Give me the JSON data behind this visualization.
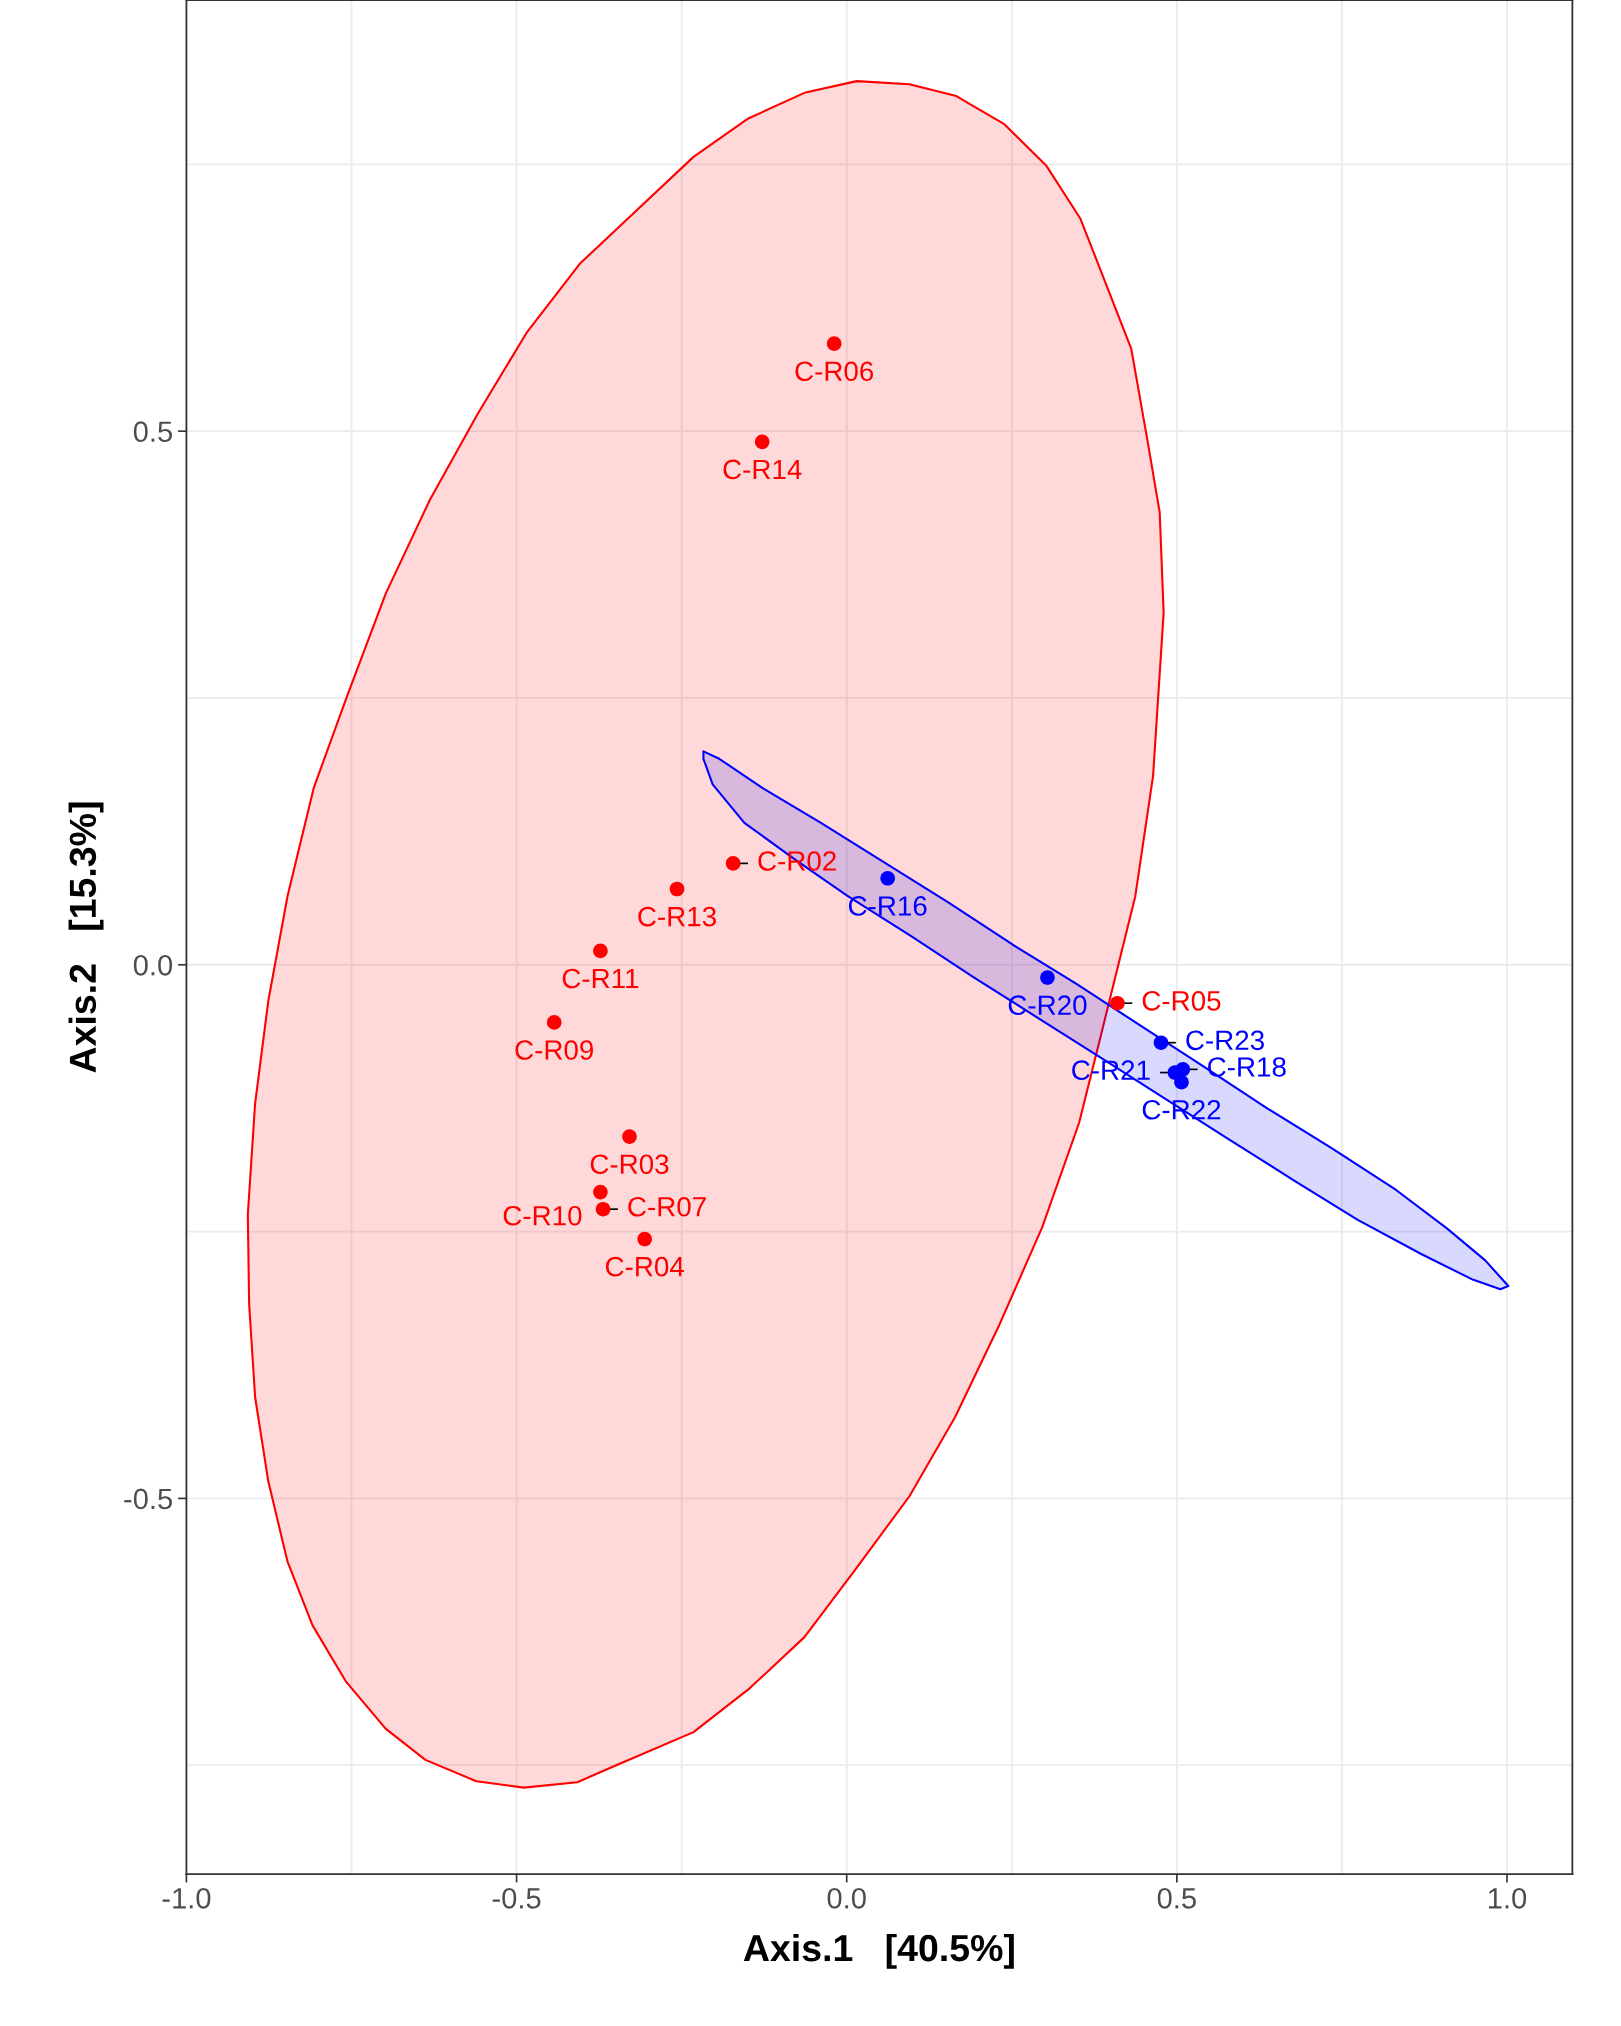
{
  "chart_data": {
    "type": "scatter",
    "xlabel": "Axis.1   [40.5%]",
    "ylabel": "Axis.2   [15.3%]",
    "xlim": [
      -1.0,
      1.099
    ],
    "ylim": [
      -0.852,
      0.904
    ],
    "xticks": [
      {
        "value": -1.0,
        "label": "-1.0"
      },
      {
        "value": -0.5,
        "label": "-0.5"
      },
      {
        "value": 0.0,
        "label": "0.0"
      },
      {
        "value": 0.5,
        "label": "0.5"
      },
      {
        "value": 1.0,
        "label": "1.0"
      }
    ],
    "yticks": [
      {
        "value": -0.5,
        "label": "-0.5"
      },
      {
        "value": 0.0,
        "label": "0.0"
      },
      {
        "value": 0.5,
        "label": "0.5"
      }
    ],
    "grid": true,
    "series": [
      {
        "type": "area",
        "color": "#ff0000",
        "x": [
          -0.489,
          -0.408,
          -0.349,
          -0.232,
          -0.147,
          -0.064,
          0.015,
          0.095,
          0.164,
          0.23,
          0.296,
          0.352,
          0.385,
          0.437,
          0.464,
          0.48,
          0.474,
          0.455,
          0.431,
          0.385,
          0.354,
          0.302,
          0.238,
          0.166,
          0.095,
          0.015,
          -0.064,
          -0.149,
          -0.232,
          -0.349,
          -0.404,
          -0.485,
          -0.559,
          -0.631,
          -0.698,
          -0.756,
          -0.807,
          -0.847,
          -0.876,
          -0.896,
          -0.907,
          -0.905,
          -0.896,
          -0.876,
          -0.847,
          -0.809,
          -0.758,
          -0.698,
          -0.638,
          -0.561
        ],
        "values": [
          -0.771,
          -0.766,
          -0.75,
          -0.719,
          -0.678,
          -0.63,
          -0.565,
          -0.498,
          -0.424,
          -0.339,
          -0.246,
          -0.148,
          -0.066,
          0.064,
          0.177,
          0.33,
          0.424,
          0.493,
          0.577,
          0.65,
          0.699,
          0.749,
          0.788,
          0.814,
          0.825,
          0.828,
          0.817,
          0.793,
          0.757,
          0.689,
          0.657,
          0.592,
          0.516,
          0.436,
          0.348,
          0.253,
          0.166,
          0.064,
          -0.034,
          -0.13,
          -0.234,
          -0.318,
          -0.405,
          -0.484,
          -0.559,
          -0.619,
          -0.672,
          -0.716,
          -0.745,
          -0.765
        ]
      },
      {
        "type": "area",
        "color": "#0000ff",
        "x": [
          -0.217,
          -0.193,
          -0.126,
          -0.039,
          0.155,
          0.251,
          0.348,
          0.445,
          0.542,
          0.638,
          0.735,
          0.832,
          0.909,
          0.967,
          1.002,
          0.99,
          0.948,
          0.87,
          0.774,
          0.677,
          0.58,
          0.387,
          0.193,
          0.097,
          0.0,
          -0.077,
          -0.155,
          -0.203,
          -0.217
        ],
        "values": [
          0.2,
          0.193,
          0.165,
          0.133,
          0.058,
          0.019,
          -0.018,
          -0.057,
          -0.096,
          -0.135,
          -0.172,
          -0.211,
          -0.247,
          -0.277,
          -0.301,
          -0.304,
          -0.295,
          -0.271,
          -0.239,
          -0.202,
          -0.164,
          -0.088,
          -0.012,
          0.027,
          0.065,
          0.098,
          0.133,
          0.169,
          0.193
        ]
      },
      {
        "color": "#ff0000",
        "x": [
          -0.019,
          -0.128,
          -0.172,
          -0.257,
          -0.373,
          -0.443,
          -0.329,
          -0.373,
          -0.369,
          -0.306,
          0.41
        ],
        "values": [
          0.582,
          0.49,
          0.095,
          0.071,
          0.013,
          -0.054,
          -0.161,
          -0.213,
          -0.229,
          -0.257,
          -0.036
        ],
        "value_labels": [
          "C-R06",
          "C-R14",
          "C-R02",
          "C-R13",
          "C-R11",
          "C-R09",
          "C-R03",
          "C-R10",
          "C-R07",
          "C-R04",
          "C-R05"
        ]
      },
      {
        "color": "#0000ff",
        "x": [
          0.062,
          0.304,
          0.476,
          0.509,
          0.497,
          0.507
        ],
        "values": [
          0.081,
          -0.012,
          -0.073,
          -0.098,
          -0.101,
          -0.11
        ],
        "value_labels": [
          "C-R16",
          "C-R20",
          "C-R23",
          "C-R18",
          "C-R21",
          "C-R22"
        ]
      }
    ]
  }
}
